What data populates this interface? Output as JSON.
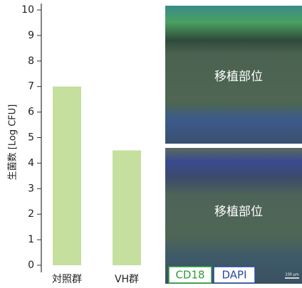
{
  "chart_data": {
    "type": "bar",
    "y_label": "生菌数 [Log CFU]",
    "categories": [
      "対照群",
      "VH群"
    ],
    "values": [
      7.0,
      4.5
    ],
    "color": "#c5df9e",
    "ylim": [
      0,
      10
    ],
    "yticks": [
      0,
      1,
      2,
      3,
      4,
      5,
      6,
      7,
      8,
      9,
      10
    ],
    "grid": false
  },
  "images": [
    {
      "label": "移植部位"
    },
    {
      "label": "移植部位"
    }
  ],
  "stain_legend": [
    "CD18",
    "DAPI"
  ],
  "scale_bar": "100 μm"
}
